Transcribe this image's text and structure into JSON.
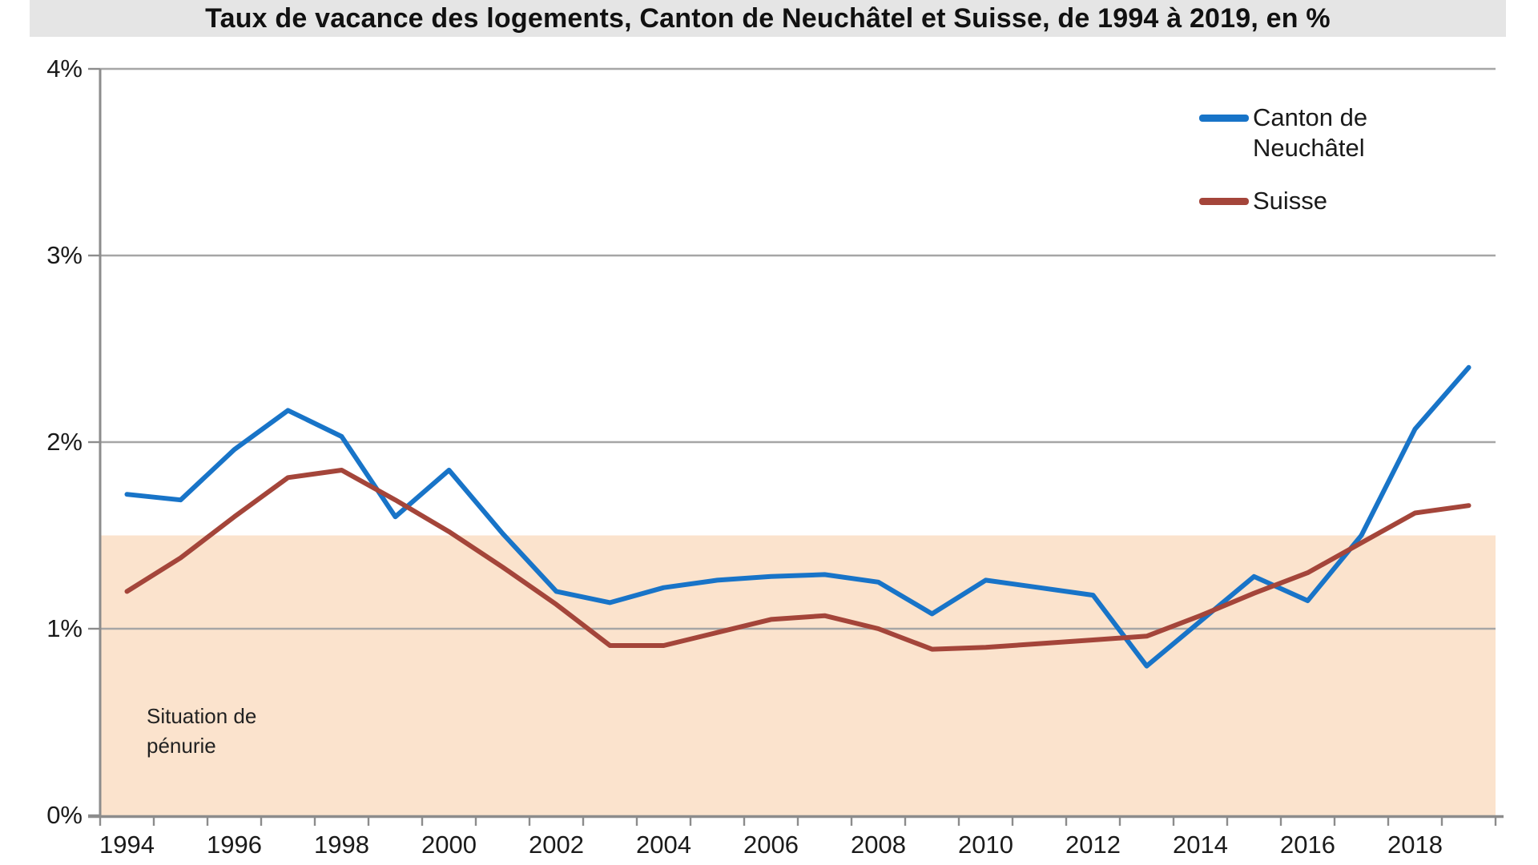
{
  "title": "Taux de vacance des logements, Canton de Neuchâtel et Suisse, de 1994 à 2019, en %",
  "y_axis": {
    "tick_labels": [
      "4%",
      "3%",
      "2%",
      "1%",
      "0%"
    ]
  },
  "x_axis": {
    "tick_labels": [
      "1994",
      "1996",
      "1998",
      "2000",
      "2002",
      "2004",
      "2006",
      "2008",
      "2010",
      "2012",
      "2014",
      "2016",
      "2018"
    ]
  },
  "annotation": {
    "line1": "Situation de",
    "line2": "pénurie"
  },
  "colors": {
    "canton_line": "#1874c8",
    "suisse_line": "#a4453a",
    "shaded_band": "#fbe3cd",
    "gridline": "#a6a6a6",
    "axis": "#8c8c8c",
    "title_background": "#e5e5e5"
  },
  "chart_data": {
    "type": "line",
    "title": "Taux de vacance des logements, Canton de Neuchâtel et Suisse, de 1994 à 2019, en %",
    "xlabel": "",
    "ylabel": "",
    "x": [
      1994,
      1995,
      1996,
      1997,
      1998,
      1999,
      2000,
      2001,
      2002,
      2003,
      2004,
      2005,
      2006,
      2007,
      2008,
      2009,
      2010,
      2011,
      2012,
      2013,
      2014,
      2015,
      2016,
      2017,
      2018,
      2019
    ],
    "series": [
      {
        "name": "Canton de Neuchâtel",
        "color": "#1874c8",
        "values": [
          1.72,
          1.69,
          1.96,
          2.17,
          2.03,
          1.6,
          1.85,
          1.51,
          1.2,
          1.14,
          1.22,
          1.26,
          1.28,
          1.29,
          1.25,
          1.08,
          1.26,
          1.22,
          1.18,
          0.8,
          1.04,
          1.28,
          1.15,
          1.5,
          2.07,
          2.4
        ]
      },
      {
        "name": "Suisse",
        "color": "#a4453a",
        "values": [
          1.2,
          1.38,
          1.6,
          1.81,
          1.85,
          1.69,
          1.52,
          1.33,
          1.13,
          0.91,
          0.91,
          0.98,
          1.05,
          1.07,
          1.0,
          0.89,
          0.9,
          0.92,
          0.94,
          0.96,
          1.07,
          1.19,
          1.3,
          1.46,
          1.62,
          1.66
        ]
      }
    ],
    "ylim": [
      0,
      4
    ],
    "y_ticks": [
      "0%",
      "1%",
      "2%",
      "3%",
      "4%"
    ],
    "grid": true,
    "legend_position": "top-right",
    "shaded_band": {
      "from": 0,
      "to": 1.5,
      "label": "Situation de pénurie",
      "color": "#fbe3cd"
    }
  }
}
